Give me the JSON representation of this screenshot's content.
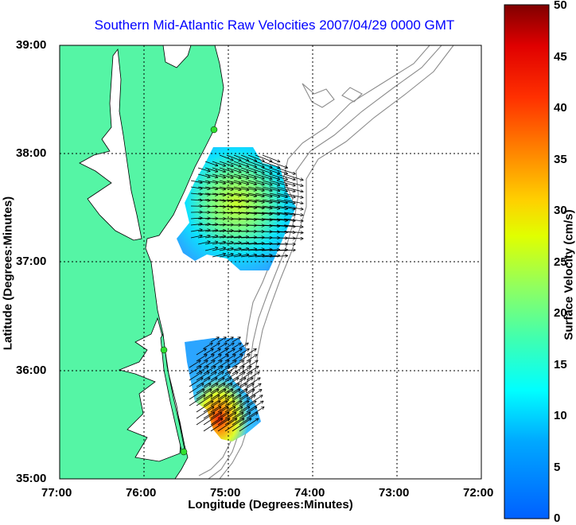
{
  "map": {
    "title": "Southern Mid-Atlantic Raw Velocities 2007/04/29 0000 GMT",
    "xlabel": "Longitude (Degrees:Minutes)",
    "ylabel": "Latitude (Degrees:Minutes)",
    "x_ticks": [
      "77:00",
      "76:00",
      "75:00",
      "74:00",
      "73:00",
      "72:00"
    ],
    "y_ticks": [
      "39:00",
      "38:00",
      "37:00",
      "36:00",
      "35:00"
    ],
    "colorbar": {
      "label": "Surface Velocity (cm/s)",
      "ticks": [
        "0",
        "5",
        "10",
        "15",
        "20",
        "25",
        "30",
        "35",
        "40",
        "45",
        "50"
      ],
      "range": [
        0,
        50
      ]
    },
    "colors": {
      "land": "#55f5a5",
      "title": "#0000ff",
      "bathymetry": "#8c8c8c",
      "vectors": "#000000"
    },
    "extent": {
      "lon": [
        -77,
        -72
      ],
      "lat": [
        35,
        39
      ]
    }
  }
}
